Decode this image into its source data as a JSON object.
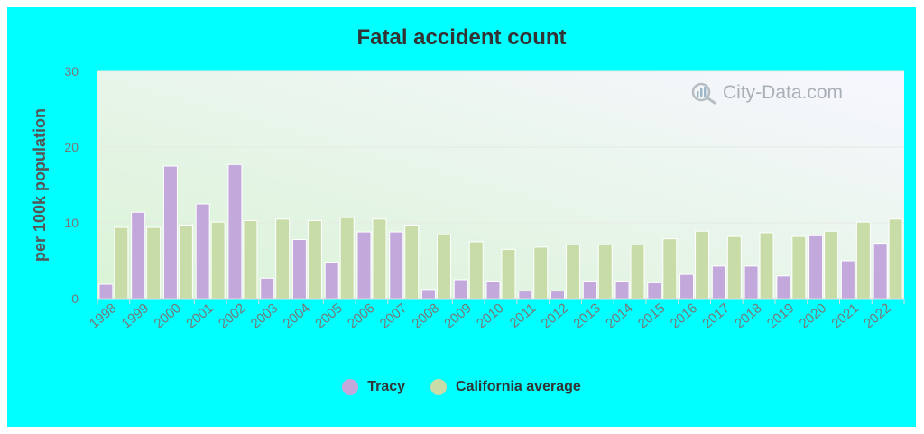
{
  "chart_data": {
    "type": "bar",
    "title": "Fatal accident count",
    "ylabel": "per 100k population",
    "xlabel": "",
    "ylim": [
      0,
      30
    ],
    "yticks": [
      0,
      10,
      20,
      30
    ],
    "grid": true,
    "legend_position": "bottom",
    "categories": [
      "1998",
      "1999",
      "2000",
      "2001",
      "2002",
      "2003",
      "2004",
      "2005",
      "2006",
      "2007",
      "2008",
      "2009",
      "2010",
      "2011",
      "2012",
      "2013",
      "2014",
      "2015",
      "2016",
      "2017",
      "2018",
      "2019",
      "2020",
      "2021",
      "2022"
    ],
    "series": [
      {
        "name": "Tracy",
        "color": "#c3a8dc",
        "values": [
          1.9,
          11.4,
          17.5,
          12.5,
          17.7,
          2.7,
          7.8,
          4.8,
          8.8,
          8.8,
          1.2,
          2.5,
          2.3,
          1.0,
          1.0,
          2.3,
          2.3,
          2.1,
          3.2,
          4.3,
          4.3,
          3.0,
          8.3,
          5.0,
          7.3
        ]
      },
      {
        "name": "California average",
        "color": "#c8dca8",
        "values": [
          9.4,
          9.4,
          9.7,
          10.1,
          10.3,
          10.5,
          10.3,
          10.7,
          10.5,
          9.7,
          8.4,
          7.5,
          6.5,
          6.8,
          7.1,
          7.1,
          7.1,
          7.9,
          8.9,
          8.2,
          8.7,
          8.2,
          8.9,
          10.1,
          10.5
        ]
      }
    ]
  },
  "watermark": {
    "text": "City-Data.com",
    "icon": "magnifier-chart-icon"
  },
  "colors": {
    "background": "#00ffff",
    "plot_top": "#f7f7ff",
    "plot_bottom": "#dcf3d8",
    "axis_text": "#777777",
    "title_text": "#333333"
  }
}
